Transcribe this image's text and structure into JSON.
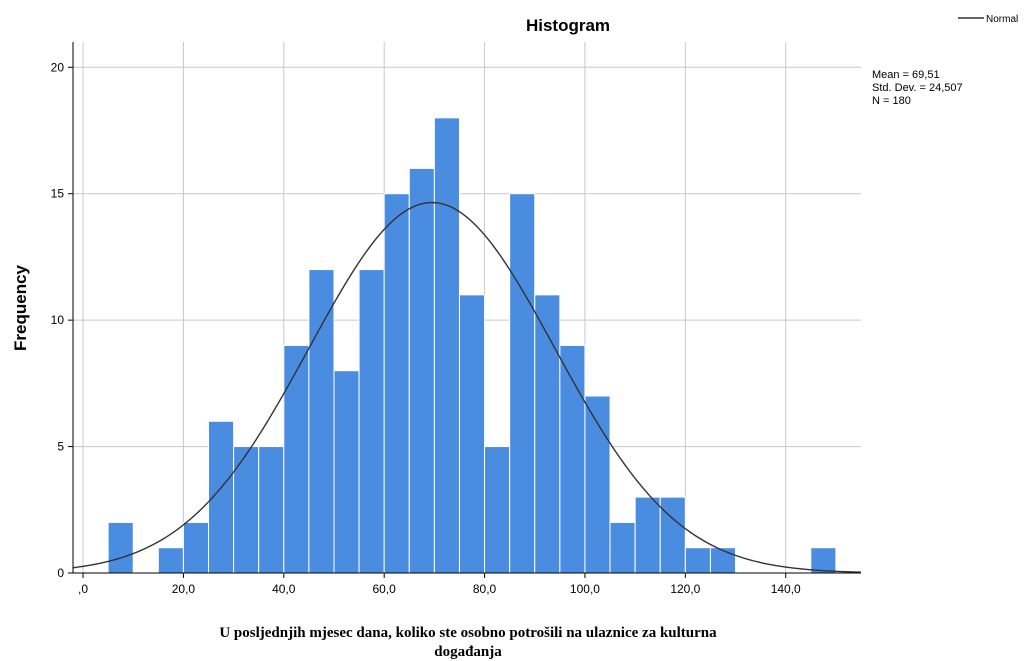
{
  "chart_data": {
    "type": "bar",
    "title": "Histogram",
    "xlabel": "U posljednjih mjesec dana, koliko ste osobno potrošili na ulaznice za kulturna događanja",
    "xlabel_lines": [
      "U posljednjih mjesec dana, koliko ste osobno potrošili na ulaznice za kulturna",
      "događanja"
    ],
    "ylabel": "Frequency",
    "xlim": [
      -2,
      155
    ],
    "ylim": [
      0,
      21
    ],
    "grid": true,
    "x_ticks": [
      0,
      20,
      40,
      60,
      80,
      100,
      120,
      140
    ],
    "x_tick_labels": [
      ",0",
      "20,0",
      "40,0",
      "60,0",
      "80,0",
      "100,0",
      "120,0",
      "140,0"
    ],
    "y_ticks": [
      0,
      5,
      10,
      15,
      20
    ],
    "y_tick_labels": [
      "0",
      "5",
      "10",
      "15",
      "20"
    ],
    "bin_width": 5,
    "bin_starts": [
      5,
      10,
      15,
      20,
      25,
      30,
      35,
      40,
      45,
      50,
      55,
      60,
      65,
      70,
      75,
      80,
      85,
      90,
      95,
      100,
      105,
      110,
      115,
      120,
      125,
      130,
      135,
      140,
      145,
      150
    ],
    "values": [
      2,
      0,
      1,
      2,
      6,
      5,
      5,
      9,
      12,
      8,
      12,
      15,
      16,
      18,
      11,
      5,
      15,
      11,
      9,
      7,
      2,
      3,
      3,
      1,
      1,
      0,
      0,
      0,
      1,
      0
    ],
    "legend": {
      "label": "Normal",
      "placement": "top-right"
    },
    "stats": {
      "mean_label": "Mean = 69,51",
      "std_label": "Std. Dev. = 24,507",
      "n_label": "N = 180"
    },
    "normal_curve": {
      "mean": 69.51,
      "sd": 24.507,
      "n": 180
    },
    "colors": {
      "bar_fill": "#4a8ce0",
      "bar_edge": "#ffffff",
      "curve": "#333333",
      "grid": "#c8c8c8",
      "axis": "#000000"
    }
  }
}
